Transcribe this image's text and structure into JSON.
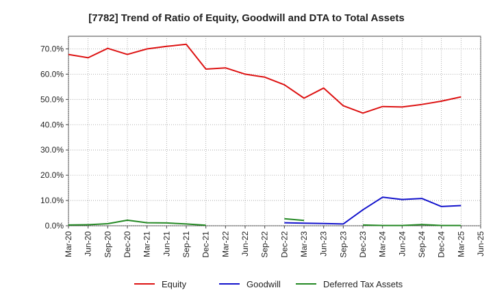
{
  "chart_data": {
    "type": "line",
    "title": "[7782]  Trend of Ratio of Equity, Goodwill and DTA to Total Assets",
    "xlabel": "",
    "ylabel": "",
    "ylim": [
      0,
      75
    ],
    "y_ticks": [
      "0.0%",
      "10.0%",
      "20.0%",
      "30.0%",
      "40.0%",
      "50.0%",
      "60.0%",
      "70.0%"
    ],
    "y_tick_values": [
      0,
      10,
      20,
      30,
      40,
      50,
      60,
      70
    ],
    "categories": [
      "Mar-20",
      "Jun-20",
      "Sep-20",
      "Dec-20",
      "Mar-21",
      "Jun-21",
      "Sep-21",
      "Dec-21",
      "Mar-22",
      "Jun-22",
      "Sep-22",
      "Dec-22",
      "Mar-23",
      "Jun-23",
      "Sep-23",
      "Dec-23",
      "Mar-24",
      "Jun-24",
      "Sep-24",
      "Dec-24",
      "Mar-25",
      "Jun-25"
    ],
    "grid": true,
    "legend_position": "bottom",
    "series": [
      {
        "name": "Equity",
        "color": "#dd1111",
        "values": [
          67.8,
          66.5,
          70.2,
          67.8,
          70.0,
          71.0,
          71.8,
          62.0,
          62.5,
          60.0,
          58.8,
          55.8,
          50.5,
          54.5,
          47.5,
          44.6,
          47.2,
          47.0,
          48.0,
          49.3,
          51.0,
          null
        ]
      },
      {
        "name": "Goodwill",
        "color": "#1111cc",
        "values": [
          null,
          null,
          null,
          null,
          null,
          null,
          null,
          null,
          null,
          null,
          null,
          1.2,
          1.0,
          0.9,
          0.7,
          6.3,
          11.3,
          10.4,
          10.8,
          7.6,
          8.0,
          null
        ]
      },
      {
        "name": "Deferred Tax Assets",
        "color": "#228822",
        "values": [
          0.3,
          0.4,
          0.8,
          2.2,
          1.2,
          1.1,
          0.7,
          0.2,
          null,
          null,
          null,
          2.8,
          2.1,
          null,
          null,
          0.3,
          0.1,
          0.1,
          0.5,
          0.1,
          0.1,
          null
        ]
      }
    ]
  }
}
